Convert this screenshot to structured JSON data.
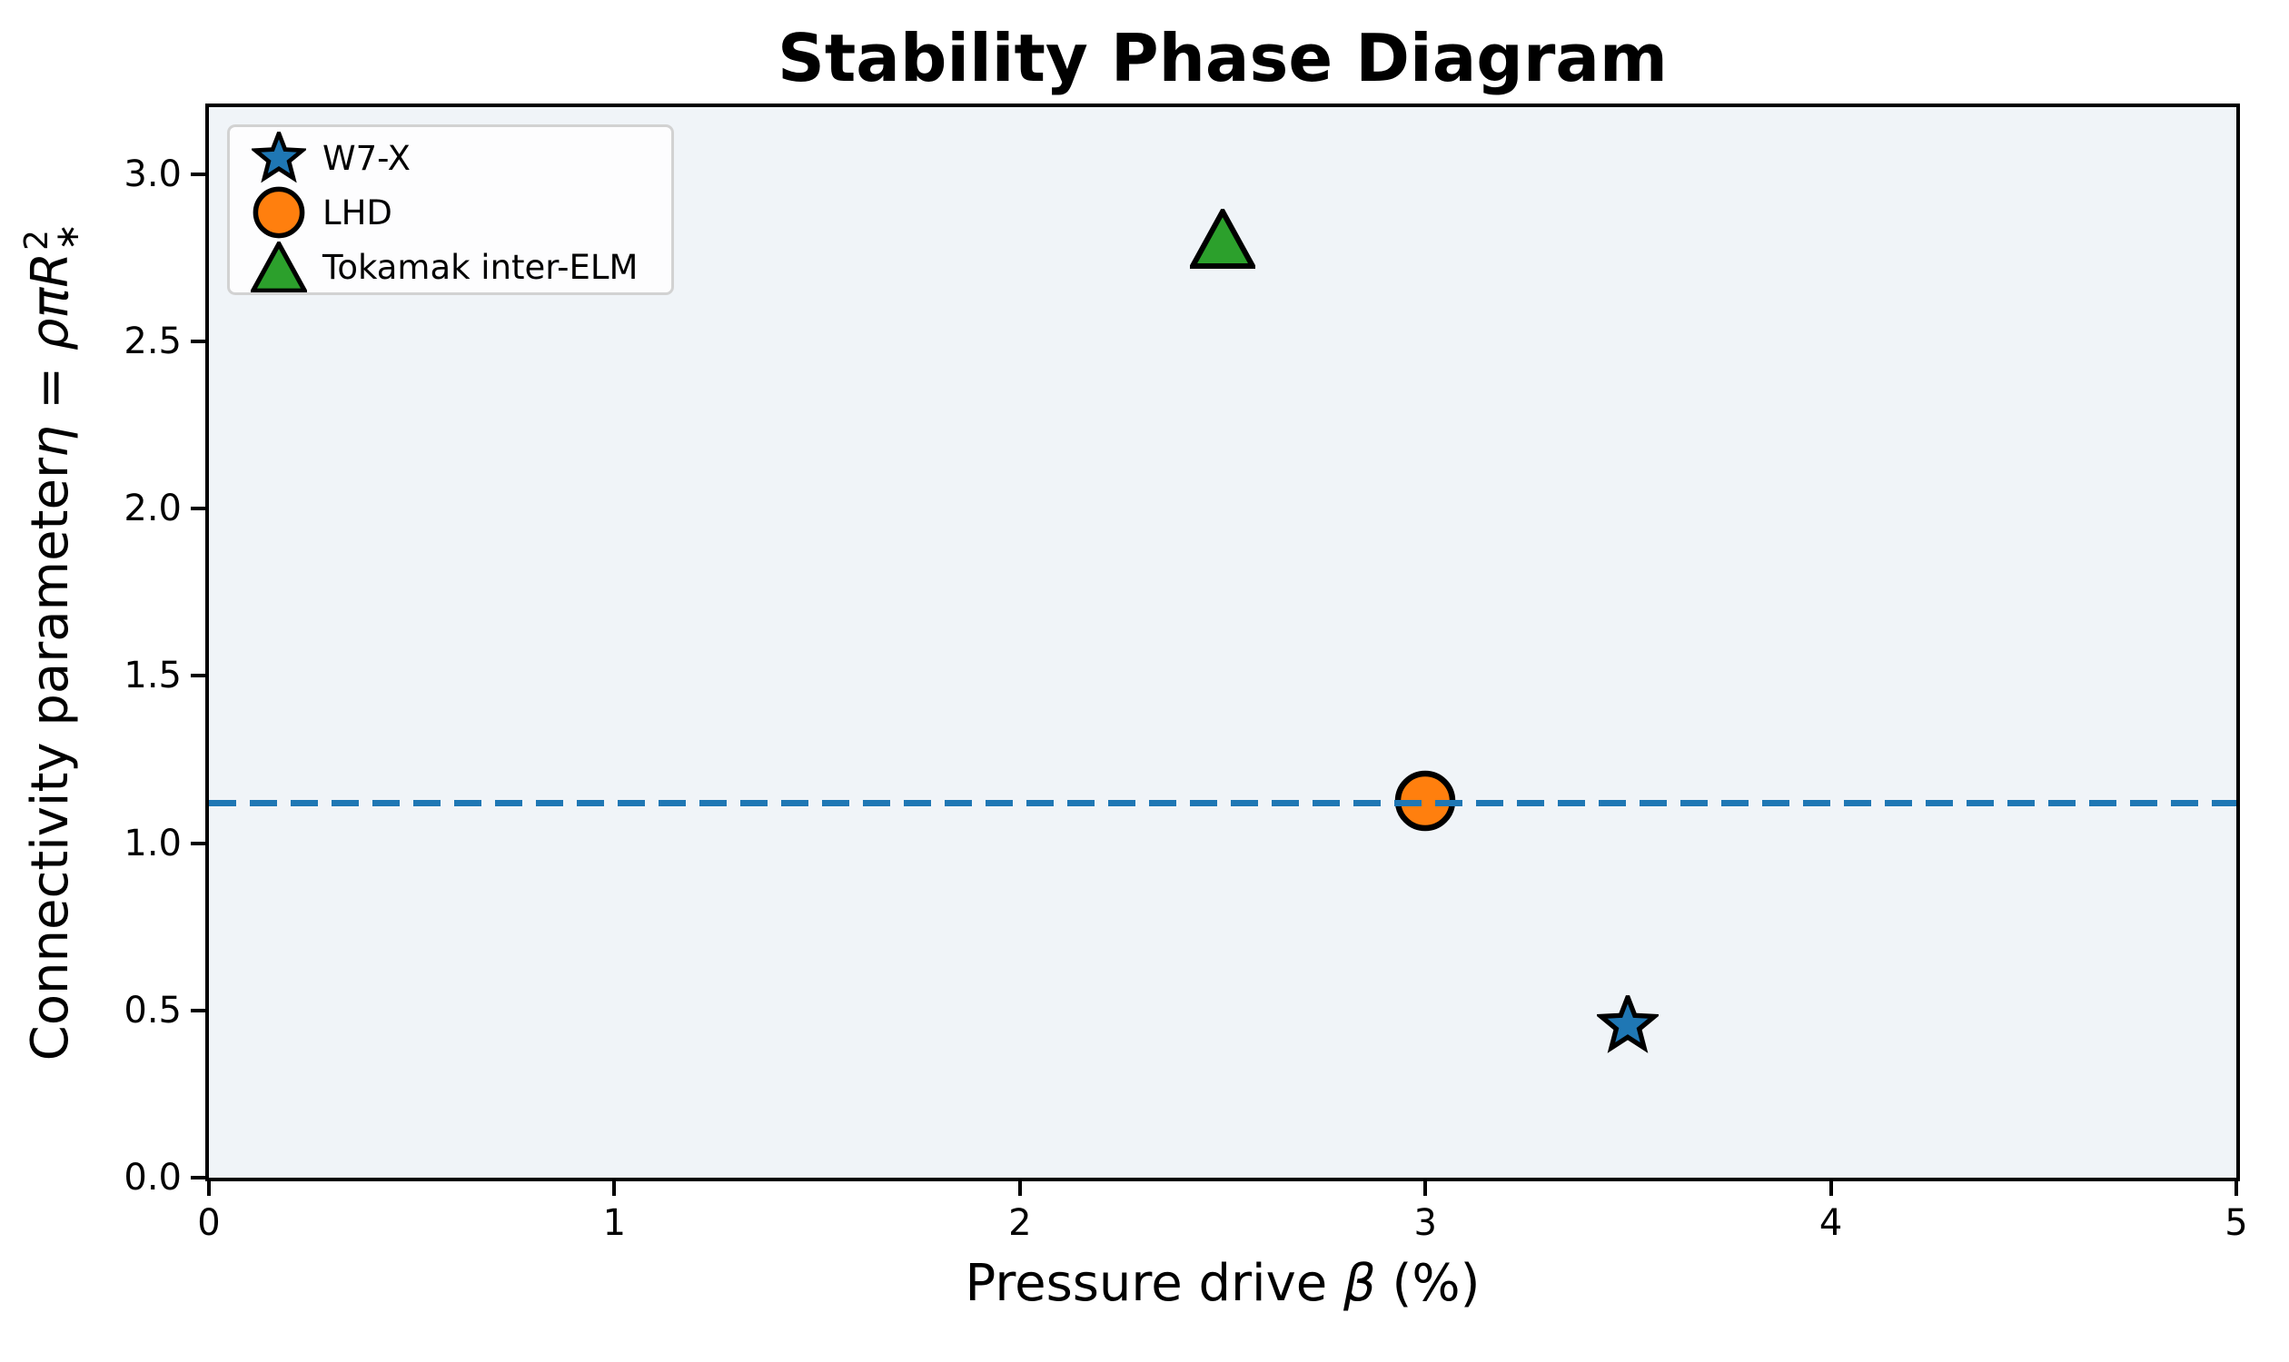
{
  "chart_data": {
    "type": "scatter",
    "title": "Stability Phase Diagram",
    "xlabel": {
      "prefix": "Pressure drive ",
      "symbol": "β",
      "suffix": " (%)"
    },
    "ylabel": {
      "prefix": "Connectivity parameter ",
      "math": "η = ρπR",
      "sup": "2",
      "sub": "∗"
    },
    "xlim": [
      0,
      5
    ],
    "ylim": [
      0,
      3.2
    ],
    "xticks": [
      {
        "value": 0,
        "label": "0"
      },
      {
        "value": 1,
        "label": "1"
      },
      {
        "value": 2,
        "label": "2"
      },
      {
        "value": 3,
        "label": "3"
      },
      {
        "value": 4,
        "label": "4"
      },
      {
        "value": 5,
        "label": "5"
      }
    ],
    "yticks": [
      {
        "value": 0.0,
        "label": "0.0"
      },
      {
        "value": 0.5,
        "label": "0.5"
      },
      {
        "value": 1.0,
        "label": "1.0"
      },
      {
        "value": 1.5,
        "label": "1.5"
      },
      {
        "value": 2.0,
        "label": "2.0"
      },
      {
        "value": 2.5,
        "label": "2.5"
      },
      {
        "value": 3.0,
        "label": "3.0"
      }
    ],
    "series": [
      {
        "name": "W7-X",
        "marker": "star",
        "color": "#1f77b4",
        "points": [
          {
            "x": 3.5,
            "y": 0.45
          }
        ]
      },
      {
        "name": "LHD",
        "marker": "circle",
        "color": "#ff7f0e",
        "points": [
          {
            "x": 3.0,
            "y": 1.12
          }
        ]
      },
      {
        "name": "Tokamak inter-ELM",
        "marker": "triangle",
        "color": "#2ca02c",
        "points": [
          {
            "x": 2.5,
            "y": 2.8
          }
        ]
      }
    ],
    "threshold_line": {
      "y": 1.12,
      "color": "#1f77b4",
      "style": "dashed"
    },
    "legend": {
      "position": "upper-left",
      "entries": [
        "W7-X",
        "LHD",
        "Tokamak inter-ELM"
      ]
    },
    "colors": {
      "plot_background": "#f0f4f8",
      "figure_background": "#ffffff",
      "spine": "#000000",
      "marker_edge": "#000000"
    },
    "grid": false
  }
}
